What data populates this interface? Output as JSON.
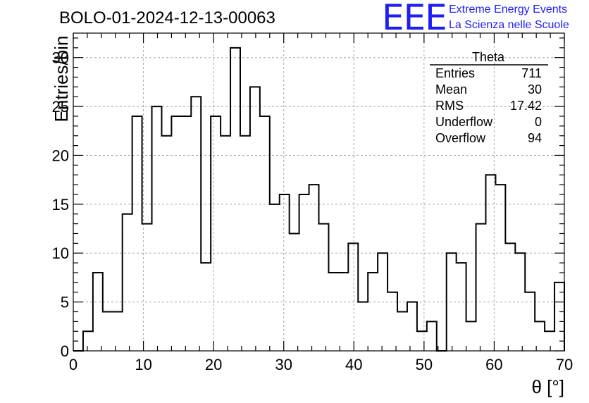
{
  "header": {
    "title": "BOLO-01-2024-12-13-00063",
    "logo_text": "EEE",
    "logo_line1": "Extreme Energy Events",
    "logo_line2": "La Scienza nelle Scuole",
    "logo_color": "#1d1df5"
  },
  "stats_box": {
    "name": "Theta",
    "rows": [
      {
        "label": "Entries",
        "value": "711"
      },
      {
        "label": "Mean",
        "value": "30"
      },
      {
        "label": "RMS",
        "value": "17.42"
      },
      {
        "label": "Underflow",
        "value": "0"
      },
      {
        "label": "Overflow",
        "value": "94"
      }
    ]
  },
  "chart_data": {
    "type": "bar",
    "style": "step-histogram",
    "title": "BOLO-01-2024-12-13-00063",
    "xlabel": "θ [°]",
    "ylabel": "Entries/bin",
    "xlim": [
      0,
      70
    ],
    "ylim": [
      0,
      32.5
    ],
    "bin_width": 1.4,
    "bin_edges_start": 0,
    "xticks": [
      0,
      10,
      20,
      30,
      40,
      50,
      60,
      70
    ],
    "yticks": [
      0,
      5,
      10,
      15,
      20,
      25,
      30
    ],
    "grid": true,
    "legend": "top-right",
    "values": [
      0,
      2,
      8,
      4,
      4,
      14,
      24,
      13,
      25,
      22,
      24,
      24,
      26,
      9,
      24,
      22,
      31,
      22,
      27,
      24,
      15,
      16,
      12,
      16,
      17,
      13,
      8,
      8,
      11,
      5,
      8,
      10,
      6,
      4,
      5,
      2,
      3,
      0,
      10,
      9,
      3,
      13,
      18,
      17,
      11,
      10,
      6,
      3,
      2,
      7
    ]
  }
}
